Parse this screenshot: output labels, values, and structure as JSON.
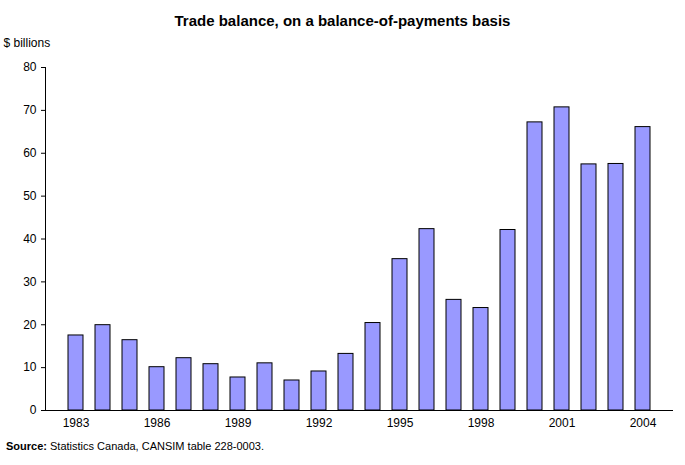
{
  "chart_data": {
    "type": "bar",
    "title": "Trade balance, on a balance-of-payments basis",
    "y_label": "$ billions",
    "source": "Source: Statistics Canada, CANSIM table 228-0003.",
    "categories": [
      "1983",
      null,
      null,
      "1986",
      null,
      null,
      "1989",
      null,
      null,
      "1992",
      null,
      null,
      "1995",
      null,
      null,
      "1998",
      null,
      null,
      "2001",
      null,
      null,
      "2004"
    ],
    "values": [
      17.5,
      19.9,
      16.4,
      10.1,
      12.2,
      10.8,
      7.7,
      11.0,
      7.0,
      9.1,
      13.2,
      20.4,
      35.3,
      42.3,
      25.8,
      23.9,
      42.1,
      67.2,
      70.7,
      57.4,
      57.5,
      66.1
    ],
    "color": "#9999ff",
    "ylim": [
      0,
      80
    ],
    "yticks": [
      0,
      10,
      20,
      30,
      40,
      50,
      60,
      70,
      80
    ],
    "grid": false
  }
}
